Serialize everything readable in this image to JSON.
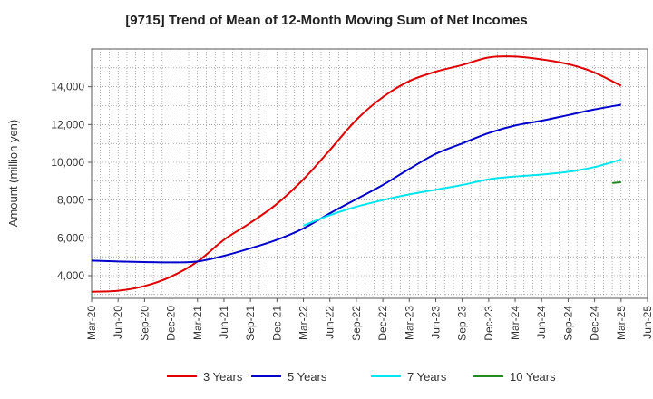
{
  "chart_data": {
    "type": "line",
    "title": "[9715]  Trend of Mean of 12-Month Moving Sum of Net Incomes",
    "ylabel": "Amount (million yen)",
    "xlabel": "",
    "x_ticks": [
      "Mar-20",
      "Jun-20",
      "Sep-20",
      "Dec-20",
      "Mar-21",
      "Jun-21",
      "Sep-21",
      "Dec-21",
      "Mar-22",
      "Jun-22",
      "Sep-22",
      "Dec-22",
      "Mar-23",
      "Jun-23",
      "Sep-23",
      "Dec-23",
      "Mar-24",
      "Jun-24",
      "Sep-24",
      "Dec-24",
      "Mar-25",
      "Jun-25"
    ],
    "y_ticks": [
      4000,
      6000,
      8000,
      10000,
      12000,
      14000
    ],
    "y_tick_labels": [
      "4,000",
      "6,000",
      "8,000",
      "10,000",
      "12,000",
      "14,000"
    ],
    "ylim": [
      2800,
      16000
    ],
    "grid": true,
    "legend_position": "bottom",
    "series": [
      {
        "name": "3 Years",
        "color": "#e00000",
        "x": [
          "Mar-20",
          "Jun-20",
          "Sep-20",
          "Dec-20",
          "Mar-21",
          "Jun-21",
          "Sep-21",
          "Dec-21",
          "Mar-22",
          "Jun-22",
          "Sep-22",
          "Dec-22",
          "Mar-23",
          "Jun-23",
          "Sep-23",
          "Dec-23",
          "Mar-24",
          "Jun-24",
          "Sep-24",
          "Dec-24",
          "Mar-25"
        ],
        "values": [
          3150,
          3200,
          3450,
          3950,
          4750,
          5900,
          6800,
          7800,
          9100,
          10650,
          12250,
          13450,
          14300,
          14800,
          15150,
          15550,
          15600,
          15450,
          15200,
          14750,
          14050
        ]
      },
      {
        "name": "5 Years",
        "color": "#0000cc",
        "x": [
          "Mar-20",
          "Jun-20",
          "Sep-20",
          "Dec-20",
          "Mar-21",
          "Jun-21",
          "Sep-21",
          "Dec-21",
          "Mar-22",
          "Jun-22",
          "Sep-22",
          "Dec-22",
          "Mar-23",
          "Jun-23",
          "Sep-23",
          "Dec-23",
          "Mar-24",
          "Jun-24",
          "Sep-24",
          "Dec-24",
          "Mar-25"
        ],
        "values": [
          4800,
          4750,
          4720,
          4700,
          4750,
          5050,
          5450,
          5900,
          6500,
          7300,
          8050,
          8800,
          9650,
          10450,
          11000,
          11550,
          11950,
          12200,
          12500,
          12800,
          13050
        ]
      },
      {
        "name": "7 Years",
        "color": "#00e5ee",
        "x": [
          "Mar-22",
          "Jun-22",
          "Sep-22",
          "Dec-22",
          "Mar-23",
          "Jun-23",
          "Sep-23",
          "Dec-23",
          "Mar-24",
          "Jun-24",
          "Sep-24",
          "Dec-24",
          "Mar-25"
        ],
        "values": [
          6650,
          7200,
          7650,
          8000,
          8300,
          8550,
          8800,
          9100,
          9250,
          9350,
          9500,
          9750,
          10150
        ]
      },
      {
        "name": "10 Years",
        "color": "#228b22",
        "x": [
          "Feb-25",
          "Mar-25"
        ],
        "values": [
          8900,
          8950
        ]
      }
    ]
  }
}
